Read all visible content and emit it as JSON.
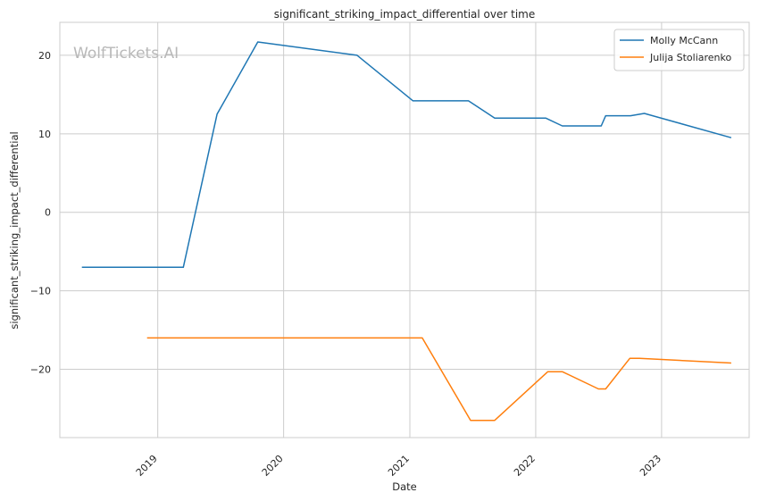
{
  "chart_data": {
    "type": "line",
    "title": "significant_striking_impact_differential over time",
    "xlabel": "Date",
    "ylabel": "significant_striking_impact_differential",
    "x_ticks": [
      "2019",
      "2020",
      "2021",
      "2022",
      "2023"
    ],
    "y_ticks": [
      -20,
      -10,
      0,
      10,
      20
    ],
    "xlim": [
      "2018-03-23",
      "2023-09-12"
    ],
    "ylim": [
      -28.7,
      24.2
    ],
    "grid": true,
    "legend_position": "top-right",
    "watermark": "WolfTickets.AI",
    "series": [
      {
        "name": "Molly McCann",
        "color": "#1f77b4",
        "points": [
          {
            "x": "2018-05-26",
            "y": -7.0
          },
          {
            "x": "2019-03-16",
            "y": -7.0
          },
          {
            "x": "2019-06-22",
            "y": 12.5
          },
          {
            "x": "2019-10-18",
            "y": 21.7
          },
          {
            "x": "2020-08-01",
            "y": 20.0
          },
          {
            "x": "2021-01-10",
            "y": 14.2
          },
          {
            "x": "2021-06-20",
            "y": 14.2
          },
          {
            "x": "2021-09-04",
            "y": 12.0
          },
          {
            "x": "2022-01-30",
            "y": 12.0
          },
          {
            "x": "2022-03-19",
            "y": 11.0
          },
          {
            "x": "2022-07-10",
            "y": 11.0
          },
          {
            "x": "2022-07-23",
            "y": 12.3
          },
          {
            "x": "2022-10-03",
            "y": 12.3
          },
          {
            "x": "2022-11-12",
            "y": 12.6
          },
          {
            "x": "2023-07-22",
            "y": 9.5
          }
        ]
      },
      {
        "name": "Julija Stoliarenko",
        "color": "#ff7f0e",
        "points": [
          {
            "x": "2018-12-01",
            "y": -16.0
          },
          {
            "x": "2021-02-06",
            "y": -16.0
          },
          {
            "x": "2021-06-26",
            "y": -26.5
          },
          {
            "x": "2021-09-04",
            "y": -26.5
          },
          {
            "x": "2022-02-05",
            "y": -20.3
          },
          {
            "x": "2022-03-19",
            "y": -20.3
          },
          {
            "x": "2022-07-02",
            "y": -22.5
          },
          {
            "x": "2022-07-23",
            "y": -22.5
          },
          {
            "x": "2022-10-01",
            "y": -18.6
          },
          {
            "x": "2022-10-29",
            "y": -18.6
          },
          {
            "x": "2023-07-22",
            "y": -19.2
          }
        ]
      }
    ]
  }
}
